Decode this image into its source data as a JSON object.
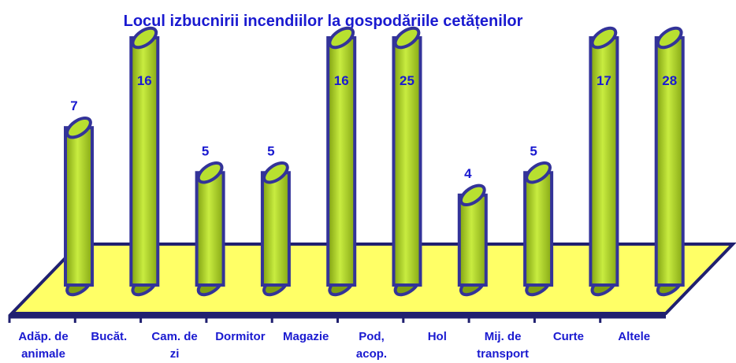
{
  "chart_data": {
    "type": "bar3d",
    "title": "Locul izbucnirii incendiilor la gospodăriile cetățenilor",
    "categories": [
      "Adăp. de animale",
      "Bucăt.",
      "Cam. de zi",
      "Dormitor",
      "Magazie",
      "Pod, acop.",
      "Hol",
      "Mij. de transport",
      "Curte",
      "Altele"
    ],
    "values": [
      7,
      16,
      5,
      5,
      16,
      25,
      4,
      5,
      17,
      28
    ],
    "color": "#a8d020",
    "ylim": [
      0,
      11
    ]
  }
}
